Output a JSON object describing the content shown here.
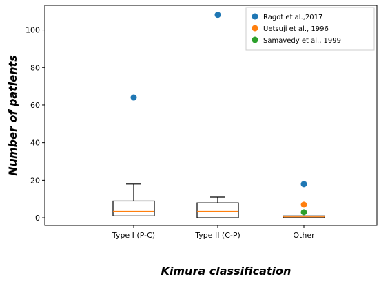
{
  "chart_data": {
    "type": "box",
    "title": "",
    "xlabel": "Kimura classification",
    "ylabel": "Number of patients",
    "categories": [
      "Type I (P-C)",
      "Type II (C-P)",
      "Other"
    ],
    "ylim": [
      -4,
      113
    ],
    "yticks": [
      0,
      20,
      40,
      60,
      80,
      100
    ],
    "grid": false,
    "legend_position": "top-right",
    "boxes": [
      {
        "category": "Type I (P-C)",
        "whisker_low": 1,
        "q1": 1,
        "median": 3.5,
        "q3": 9,
        "whisker_high": 18
      },
      {
        "category": "Type II (C-P)",
        "whisker_low": 0,
        "q1": 0,
        "median": 3.5,
        "q3": 8,
        "whisker_high": 11
      },
      {
        "category": "Other",
        "whisker_low": 0,
        "q1": 0,
        "median": 0.5,
        "q3": 1,
        "whisker_high": 1
      }
    ],
    "series": [
      {
        "name": "Ragot et al.,2017",
        "color": "#1f77b4",
        "points": [
          {
            "x": "Type I (P-C)",
            "y": 64
          },
          {
            "x": "Type II (C-P)",
            "y": 108
          },
          {
            "x": "Other",
            "y": 18
          }
        ]
      },
      {
        "name": "Uetsuji et al., 1996",
        "color": "#ff7f0e",
        "points": [
          {
            "x": "Other",
            "y": 7
          }
        ]
      },
      {
        "name": "Samavedy et al., 1999",
        "color": "#2ca02c",
        "points": [
          {
            "x": "Other",
            "y": 3
          }
        ]
      }
    ],
    "colors": {
      "box": "#000000",
      "median": "#ff7f0e"
    }
  }
}
